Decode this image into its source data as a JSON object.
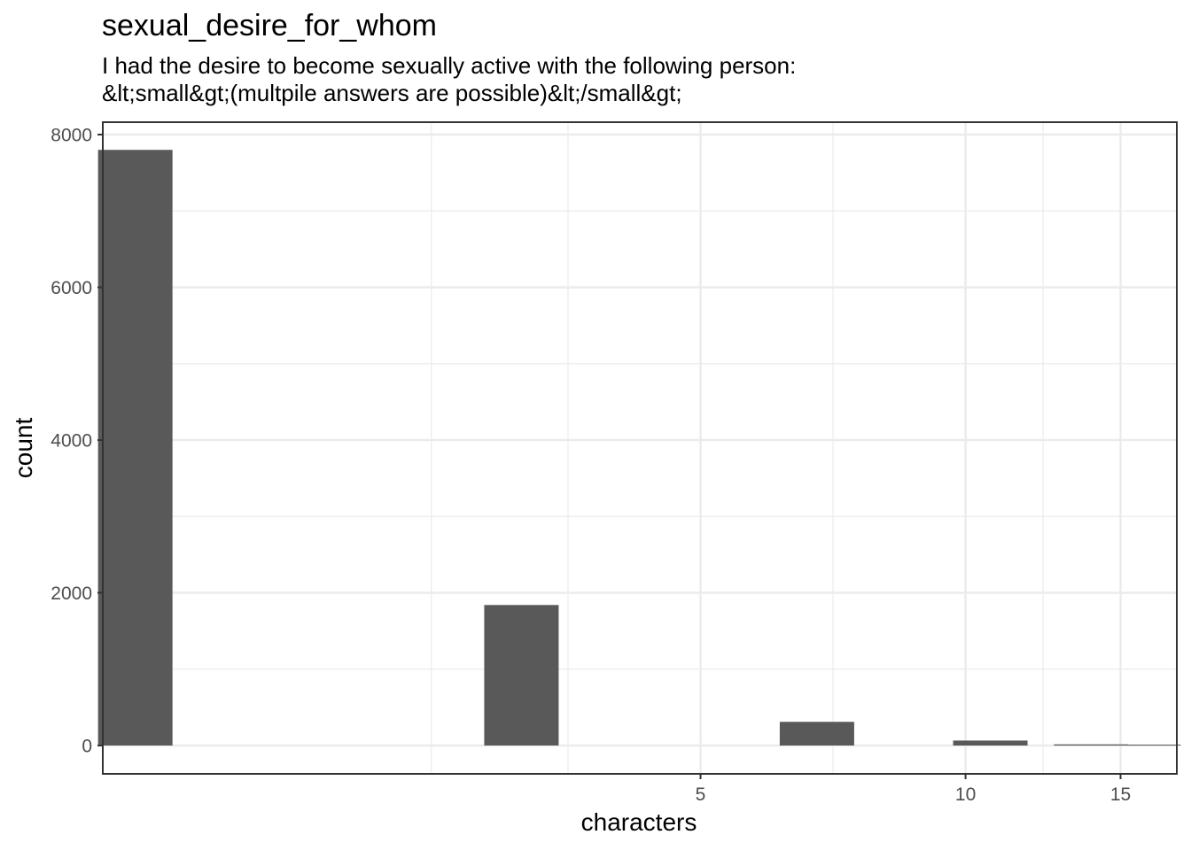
{
  "chart_data": {
    "type": "bar",
    "title": "sexual_desire_for_whom",
    "subtitle_lines": [
      "I had the desire to become sexually active with the following person:",
      "&lt;small&gt;(multpile answers are possible)&lt;/small&gt;"
    ],
    "xlabel": "characters",
    "ylabel": "count",
    "x_scale": "log10",
    "x_ticks": [
      5,
      10,
      15
    ],
    "x_tick_labels": [
      "5",
      "10",
      "15"
    ],
    "y_ticks": [
      0,
      2000,
      4000,
      6000,
      8000
    ],
    "y_tick_labels": [
      "0",
      "2000",
      "4000",
      "6000",
      "8000"
    ],
    "ylim": [
      -375,
      8000
    ],
    "grid": true,
    "legend": "none",
    "bar_color": "#595959",
    "bars": [
      {
        "x": 1.14,
        "count": 7800
      },
      {
        "x": 3.13,
        "count": 1840
      },
      {
        "x": 6.78,
        "count": 310
      },
      {
        "x": 10.67,
        "count": 65
      },
      {
        "x": 13.89,
        "count": 15
      },
      {
        "x": 15.93,
        "count": 10
      }
    ]
  }
}
